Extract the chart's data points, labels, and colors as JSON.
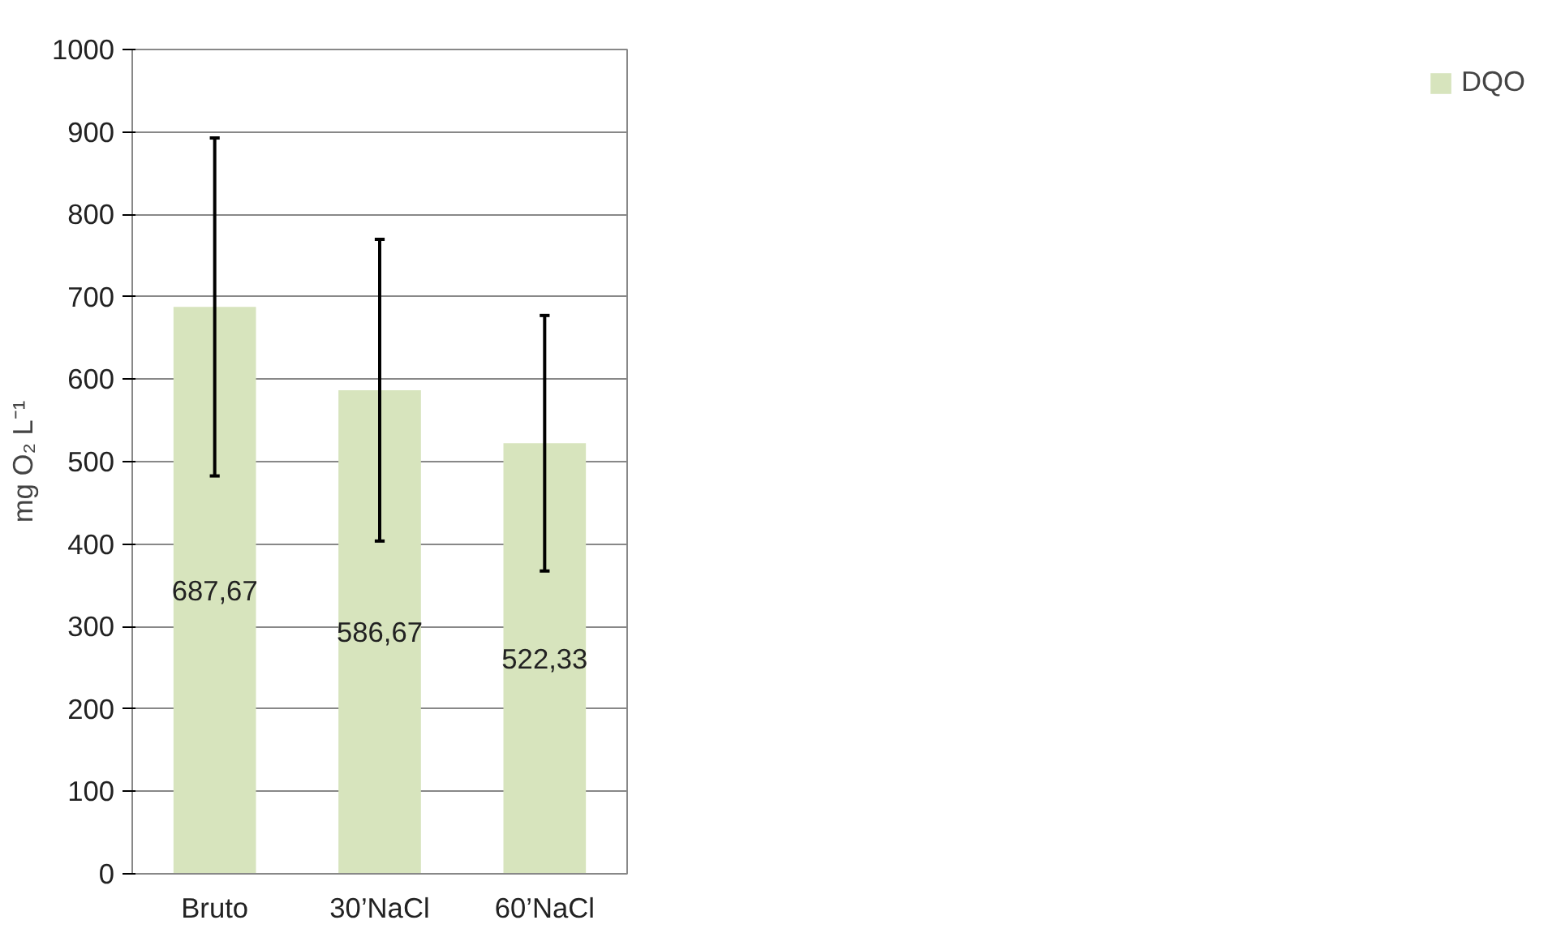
{
  "chart_data": {
    "type": "bar",
    "ylabel": "mg O₂ L⁻¹",
    "categories": [
      "Bruto",
      "30’NaCl",
      "60’NaCl"
    ],
    "series": [
      {
        "name": "DQO",
        "color": "#d7e4bd",
        "values": [
          687.67,
          586.67,
          522.33
        ],
        "errors": [
          205,
          183,
          155
        ],
        "value_labels": [
          "687,67",
          "586,67",
          "522,33"
        ]
      }
    ],
    "ylim": [
      0,
      1000
    ],
    "yticks": [
      0,
      100,
      200,
      300,
      400,
      500,
      600,
      700,
      800,
      900,
      1000
    ],
    "grid": "y",
    "legend": "right"
  }
}
